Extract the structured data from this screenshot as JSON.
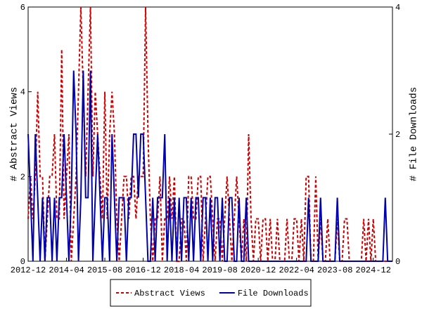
{
  "chart_data": {
    "type": "line",
    "y_label": "# Abstract Views",
    "y2_label": "# File Downloads",
    "x": [
      "2012-12",
      "2013-01",
      "2013-02",
      "2013-03",
      "2013-04",
      "2013-05",
      "2013-06",
      "2013-07",
      "2013-08",
      "2013-09",
      "2013-10",
      "2013-11",
      "2013-12",
      "2014-01",
      "2014-02",
      "2014-03",
      "2014-04",
      "2014-05",
      "2014-06",
      "2014-07",
      "2014-08",
      "2014-09",
      "2014-10",
      "2014-11",
      "2014-12",
      "2015-01",
      "2015-02",
      "2015-03",
      "2015-04",
      "2015-05",
      "2015-06",
      "2015-07",
      "2015-08",
      "2015-09",
      "2015-10",
      "2015-11",
      "2015-12",
      "2016-01",
      "2016-02",
      "2016-03",
      "2016-04",
      "2016-05",
      "2016-06",
      "2016-07",
      "2016-08",
      "2016-09",
      "2016-10",
      "2016-11",
      "2016-12",
      "2017-01",
      "2017-02",
      "2017-03",
      "2017-04",
      "2017-05",
      "2017-06",
      "2017-07",
      "2017-08",
      "2017-09",
      "2017-10",
      "2017-11",
      "2017-12",
      "2018-01",
      "2018-02",
      "2018-03",
      "2018-04",
      "2018-05",
      "2018-06",
      "2018-07",
      "2018-08",
      "2018-09",
      "2018-10",
      "2018-11",
      "2018-12",
      "2019-01",
      "2019-02",
      "2019-03",
      "2019-04",
      "2019-05",
      "2019-06",
      "2019-07",
      "2019-08",
      "2019-09",
      "2019-10",
      "2019-11",
      "2019-12",
      "2020-01",
      "2020-02",
      "2020-03",
      "2020-04",
      "2020-05",
      "2020-06",
      "2020-07",
      "2020-08",
      "2020-09",
      "2020-10",
      "2020-11",
      "2020-12",
      "2021-01",
      "2021-02",
      "2021-03",
      "2021-04",
      "2021-05",
      "2021-06",
      "2021-07",
      "2021-08",
      "2021-09",
      "2021-10",
      "2021-11",
      "2021-12",
      "2022-01",
      "2022-02",
      "2022-03",
      "2022-04",
      "2022-05",
      "2022-06",
      "2022-07",
      "2022-08",
      "2022-09",
      "2022-10",
      "2022-11",
      "2022-12",
      "2023-01",
      "2023-02",
      "2023-03",
      "2023-04",
      "2023-05",
      "2023-06",
      "2023-07",
      "2023-08",
      "2023-09",
      "2023-10",
      "2023-11",
      "2023-12",
      "2024-01",
      "2024-02",
      "2024-03",
      "2024-04",
      "2024-05",
      "2024-06",
      "2024-07",
      "2024-08",
      "2024-09",
      "2024-10",
      "2024-11",
      "2024-12",
      "2025-01",
      "2025-02",
      "2025-03",
      "2025-04",
      "2025-05",
      "2025-06",
      "2025-07",
      "2025-08"
    ],
    "series": [
      {
        "name": "Abstract Views",
        "color": "#cc0000",
        "dash": true,
        "axis": "y",
        "values": [
          1,
          2,
          1,
          2,
          4,
          2,
          2,
          0,
          1,
          2,
          2,
          3,
          1,
          1,
          5,
          1,
          2,
          3,
          0,
          1,
          2,
          4,
          6,
          4,
          2,
          4,
          6,
          2,
          4,
          3,
          2,
          1,
          4,
          1,
          3,
          4,
          3,
          1,
          0,
          1,
          2,
          2,
          1,
          2,
          2,
          1,
          2,
          2,
          2,
          6,
          3,
          1,
          0,
          1,
          1,
          2,
          0,
          1,
          1,
          2,
          1,
          2,
          0,
          0,
          1,
          1,
          0,
          2,
          2,
          1,
          1,
          2,
          2,
          0,
          1,
          2,
          2,
          1,
          0,
          1,
          1,
          0,
          1,
          2,
          1,
          0,
          1,
          2,
          1,
          0,
          1,
          0,
          3,
          1,
          0,
          1,
          1,
          0,
          1,
          1,
          0,
          1,
          0,
          0,
          1,
          0,
          0,
          0,
          1,
          0,
          0,
          1,
          1,
          0,
          1,
          0,
          2,
          2,
          0,
          0,
          2,
          0,
          1,
          0,
          0,
          1,
          0,
          0,
          0,
          1,
          0,
          0,
          1,
          1,
          0,
          0,
          0,
          0,
          0,
          0,
          1,
          0,
          1,
          0,
          1,
          0,
          0,
          0,
          0,
          0,
          0,
          0,
          0
        ]
      },
      {
        "name": "File Downloads",
        "color": "#0000aa",
        "dash": false,
        "axis": "y2",
        "values": [
          2,
          1,
          0,
          2,
          1,
          0,
          1,
          0,
          1,
          1,
          0,
          1,
          0,
          1,
          1,
          2,
          1,
          0,
          1,
          3,
          2,
          0,
          1,
          3,
          1,
          1,
          3,
          0,
          1,
          2,
          1,
          0,
          1,
          1,
          0,
          2,
          1,
          0,
          1,
          1,
          1,
          0,
          1,
          1,
          2,
          2,
          1,
          2,
          2,
          1,
          0,
          0,
          1,
          0,
          1,
          1,
          1,
          2,
          0,
          1,
          0,
          1,
          0,
          1,
          0,
          1,
          1,
          0,
          1,
          0,
          1,
          1,
          0,
          1,
          1,
          0,
          1,
          0,
          1,
          1,
          0,
          1,
          0,
          0,
          1,
          1,
          0,
          0,
          1,
          0,
          0,
          1,
          0,
          0,
          0,
          0,
          0,
          0,
          0,
          0,
          0,
          0,
          0,
          0,
          0,
          0,
          0,
          0,
          0,
          0,
          0,
          0,
          0,
          0,
          0,
          0,
          0,
          1,
          0,
          0,
          0,
          0,
          1,
          0,
          0,
          0,
          0,
          0,
          0,
          1,
          0,
          0,
          0,
          0,
          0,
          0,
          0,
          0,
          0,
          0,
          0,
          0,
          0,
          0,
          0,
          0,
          0,
          0,
          0,
          1,
          0,
          0,
          0
        ]
      }
    ],
    "xticks": [
      "2012-12",
      "2014-04",
      "2015-08",
      "2016-12",
      "2018-04",
      "2019-08",
      "2020-12",
      "2022-04",
      "2023-08",
      "2024-12"
    ],
    "ylim": [
      0,
      6
    ],
    "yticks": [
      0,
      2,
      4,
      6
    ],
    "y2lim": [
      0,
      4
    ],
    "y2ticks": [
      0,
      2,
      4
    ],
    "legend": "bottom"
  }
}
